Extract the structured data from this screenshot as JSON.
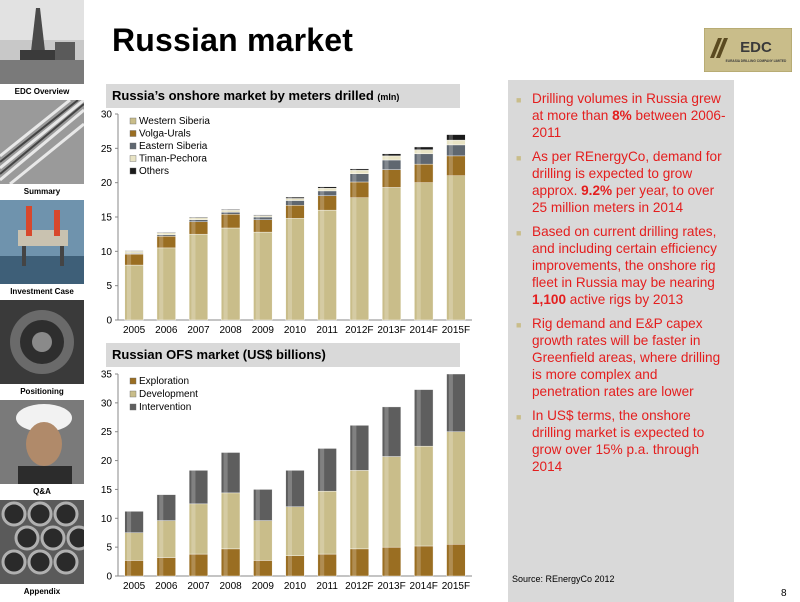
{
  "page": {
    "title": "Russian market",
    "page_number": "8",
    "source": "Source: REnergyCo 2012",
    "logo": {
      "text": "EDC",
      "subtitle": "EURASIA DRILLING COMPANY LIMITED"
    }
  },
  "sidebar": {
    "items": [
      {
        "label": "EDC Overview"
      },
      {
        "label": "Summary"
      },
      {
        "label": "Investment Case"
      },
      {
        "label": "Positioning"
      },
      {
        "label": "Q&A"
      },
      {
        "label": "Appendix"
      }
    ]
  },
  "chart1": {
    "title_main": "Russia’s onshore market by meters drilled",
    "title_unit": "(mln)"
  },
  "chart2": {
    "title_main": "Russian OFS market (US$ billions)"
  },
  "bullets": [
    {
      "before": "Drilling volumes in Russia grew at more than ",
      "bold": "8%",
      "after": " between 2006-2011"
    },
    {
      "before": "As per REnergyCo, demand for drilling is expected to grow approx. ",
      "bold": "9.2%",
      "after": " per year, to over 25 million meters in 2014"
    },
    {
      "before": "Based on current drilling rates, and including certain efficiency improvements, the onshore rig fleet in Russia may be nearing ",
      "bold": "1,100",
      "after": " active rigs by 2013"
    },
    {
      "before": "Rig demand and E&P capex growth rates will be faster in Greenfield areas, where drilling is more complex and penetration rates are lower",
      "bold": "",
      "after": ""
    },
    {
      "before": "In US$ terms, the onshore drilling market is expected to grow over 15% p.a. through 2014",
      "bold": "",
      "after": ""
    }
  ],
  "colors": {
    "western_siberia": "#c9bd8a",
    "volga_urals": "#9a6e22",
    "eastern_siberia": "#5f6770",
    "timan_pechora": "#e8e3c4",
    "others": "#1a1a1a",
    "exploration": "#9a6e22",
    "development": "#c9bd8a",
    "intervention": "#5e5e5e",
    "bullet_text": "#e41e1e",
    "panel_bg": "#d9d9d9"
  },
  "chart_data": [
    {
      "type": "bar",
      "stacked": true,
      "title": "Russia’s onshore market by meters drilled (mln)",
      "categories": [
        "2005",
        "2006",
        "2007",
        "2008",
        "2009",
        "2010",
        "2011",
        "2012F",
        "2013F",
        "2014F",
        "2015F"
      ],
      "ylim": [
        0,
        30
      ],
      "yticks": [
        0,
        5,
        10,
        15,
        20,
        25,
        30
      ],
      "grid": false,
      "legend_position": "top-left",
      "series": [
        {
          "name": "Western Siberia",
          "values": [
            8.0,
            10.5,
            12.5,
            13.4,
            12.8,
            14.8,
            16.0,
            17.8,
            19.3,
            20.0,
            21.0
          ]
        },
        {
          "name": "Volga-Urals",
          "values": [
            1.6,
            1.7,
            1.8,
            2.0,
            1.8,
            1.9,
            2.1,
            2.3,
            2.6,
            2.7,
            2.9
          ]
        },
        {
          "name": "Eastern Siberia",
          "values": [
            0.1,
            0.2,
            0.3,
            0.3,
            0.4,
            0.7,
            0.7,
            1.2,
            1.4,
            1.5,
            1.6
          ]
        },
        {
          "name": "Timan-Pechora",
          "values": [
            0.3,
            0.3,
            0.3,
            0.3,
            0.2,
            0.3,
            0.4,
            0.5,
            0.6,
            0.6,
            0.7
          ]
        },
        {
          "name": "Others",
          "values": [
            0.1,
            0.1,
            0.1,
            0.1,
            0.1,
            0.2,
            0.2,
            0.2,
            0.3,
            0.4,
            0.8
          ]
        }
      ]
    },
    {
      "type": "bar",
      "stacked": true,
      "title": "Russian OFS market (US$ billions)",
      "categories": [
        "2005",
        "2006",
        "2007",
        "2008",
        "2009",
        "2010",
        "2011",
        "2012F",
        "2013F",
        "2014F",
        "2015F"
      ],
      "ylim": [
        0,
        35
      ],
      "yticks": [
        0,
        5,
        10,
        15,
        20,
        25,
        30,
        35
      ],
      "grid": false,
      "legend_position": "top-left",
      "series": [
        {
          "name": "Exploration",
          "values": [
            2.7,
            3.2,
            3.8,
            4.7,
            2.7,
            3.5,
            3.8,
            4.7,
            5.0,
            5.2,
            5.5
          ]
        },
        {
          "name": "Development",
          "values": [
            4.8,
            6.4,
            8.7,
            9.7,
            6.9,
            8.5,
            10.9,
            13.6,
            15.7,
            17.3,
            19.5
          ]
        },
        {
          "name": "Intervention",
          "values": [
            3.7,
            4.5,
            5.8,
            7.0,
            5.4,
            6.3,
            7.4,
            7.8,
            8.6,
            9.8,
            10.0
          ]
        }
      ]
    }
  ]
}
